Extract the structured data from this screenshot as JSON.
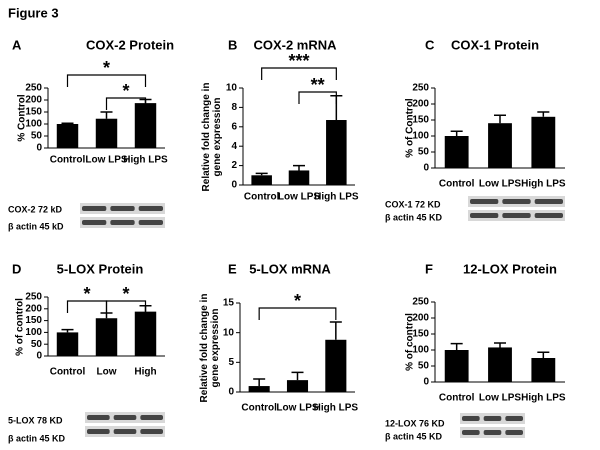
{
  "figure_title": "Figure 3",
  "chart_data": [
    {
      "type": "bar",
      "panel": "A",
      "title": "COX-2 Protein",
      "ylabel": "% Control",
      "categories": [
        "Control",
        "Low LPS",
        "High LPS"
      ],
      "values": [
        100,
        122,
        187
      ],
      "errors": [
        3,
        28,
        15
      ],
      "color": "#000000",
      "ylim": [
        0,
        250
      ],
      "yticks": [
        0,
        50,
        100,
        150,
        200,
        250
      ],
      "significance": [
        {
          "between": [
            "Control",
            "High LPS"
          ],
          "label": "*"
        },
        {
          "between": [
            "Low LPS",
            "High LPS"
          ],
          "label": "*"
        }
      ],
      "blot_labels": [
        "COX-2 72 kD",
        "β actin 45 kD"
      ]
    },
    {
      "type": "bar",
      "panel": "B",
      "title": "COX-2 mRNA",
      "ylabel": "Relative fold change in gene expression",
      "categories": [
        "Control",
        "Low LPS",
        "High LPS"
      ],
      "values": [
        1.0,
        1.5,
        6.7
      ],
      "errors": [
        0.2,
        0.5,
        2.5
      ],
      "color": "#000000",
      "ylim": [
        0,
        10
      ],
      "yticks": [
        0,
        2,
        4,
        6,
        8,
        10
      ],
      "significance": [
        {
          "between": [
            "Control",
            "High LPS"
          ],
          "label": "***"
        },
        {
          "between": [
            "Low LPS",
            "High LPS"
          ],
          "label": "**"
        }
      ]
    },
    {
      "type": "bar",
      "panel": "C",
      "title": "COX-1 Protein",
      "ylabel": "% of Control",
      "categories": [
        "Control",
        "Low LPS",
        "High LPS"
      ],
      "values": [
        100,
        140,
        160
      ],
      "errors": [
        15,
        25,
        15
      ],
      "color": "#000000",
      "ylim": [
        0,
        250
      ],
      "yticks": [
        0,
        50,
        100,
        150,
        200,
        250
      ],
      "blot_labels": [
        "COX-1 72 KD",
        "β actin 45 KD"
      ]
    },
    {
      "type": "bar",
      "panel": "D",
      "title": "5-LOX Protein",
      "ylabel": "% of control",
      "categories": [
        "Control",
        "Low",
        "High"
      ],
      "values": [
        100,
        160,
        188
      ],
      "errors": [
        12,
        22,
        25
      ],
      "color": "#000000",
      "ylim": [
        0,
        250
      ],
      "yticks": [
        0,
        50,
        100,
        150,
        200,
        250
      ],
      "significance": [
        {
          "between": [
            "Control",
            "Low"
          ],
          "label": "*"
        },
        {
          "between": [
            "Low",
            "High"
          ],
          "label": "*"
        }
      ],
      "blot_labels": [
        "5-LOX 78 KD",
        "β actin 45 KD"
      ]
    },
    {
      "type": "bar",
      "panel": "E",
      "title": "5-LOX mRNA",
      "ylabel": "Relative fold change in gene expression",
      "categories": [
        "Control",
        "Low LPS",
        "High LPS"
      ],
      "values": [
        1.0,
        2.0,
        8.8
      ],
      "errors": [
        1.2,
        1.3,
        3.0
      ],
      "color": "#000000",
      "ylim": [
        0,
        15
      ],
      "yticks": [
        0,
        5,
        10,
        15
      ],
      "significance": [
        {
          "between": [
            "Control",
            "High LPS"
          ],
          "label": "*"
        }
      ]
    },
    {
      "type": "bar",
      "panel": "F",
      "title": "12-LOX Protein",
      "ylabel": "% of control",
      "categories": [
        "Control",
        "Low LPS",
        "High LPS"
      ],
      "values": [
        100,
        108,
        75
      ],
      "errors": [
        20,
        14,
        18
      ],
      "color": "#000000",
      "ylim": [
        0,
        250
      ],
      "yticks": [
        0,
        50,
        100,
        150,
        200,
        250
      ],
      "blot_labels": [
        "12-LOX 76 KD",
        "β actin 45 KD"
      ]
    }
  ]
}
